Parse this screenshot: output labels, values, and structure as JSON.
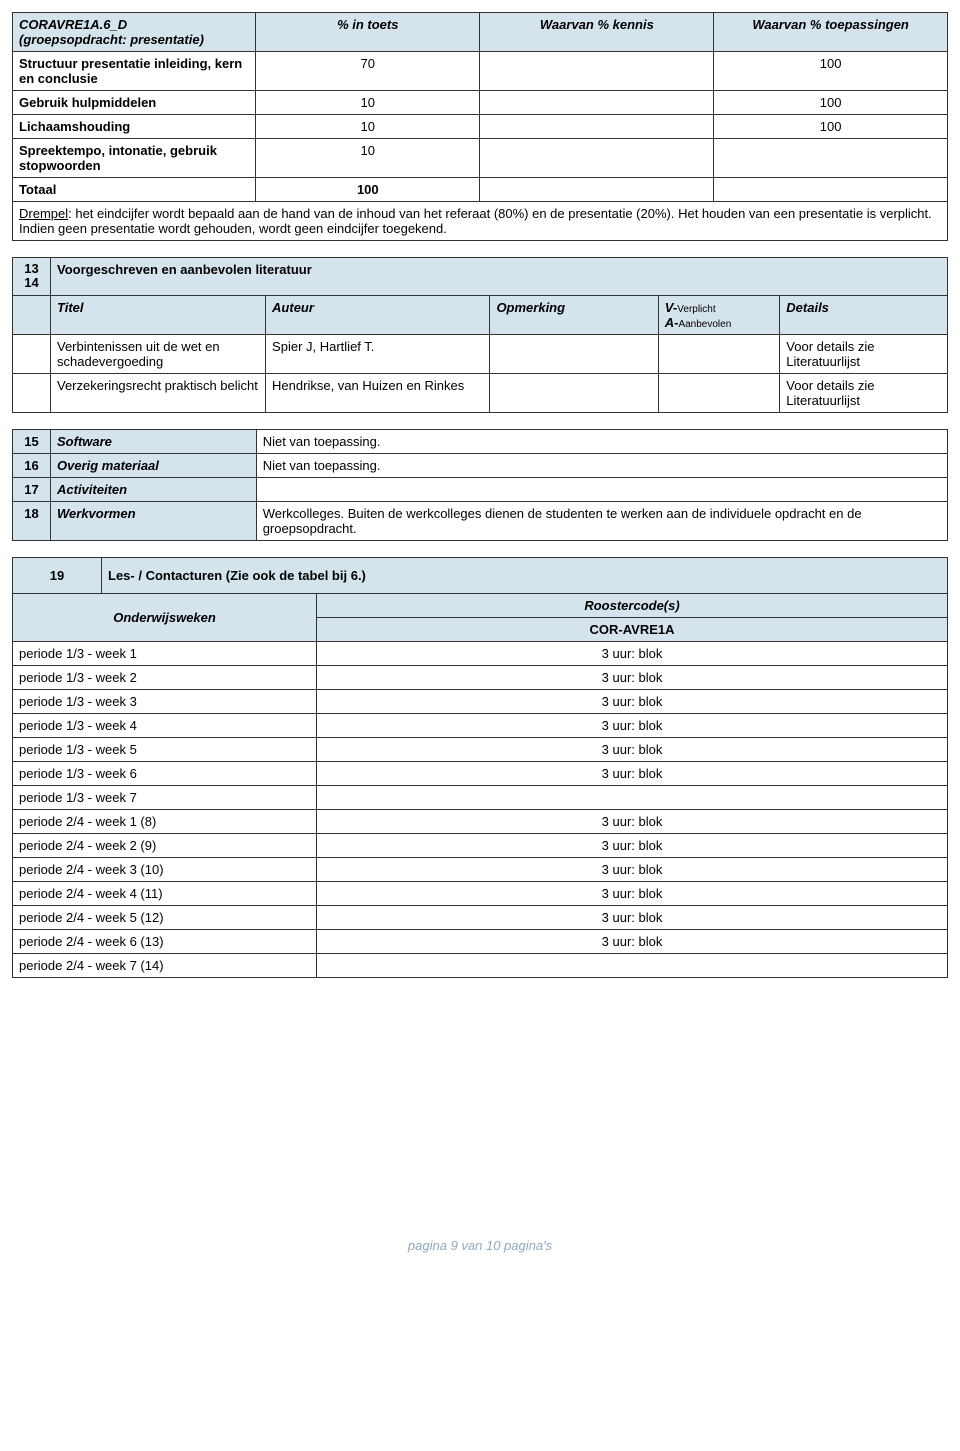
{
  "toets_table": {
    "headers": {
      "col1": "CORAVRE1A.6_D\n(groepsopdracht: presentatie)",
      "col2": "% in toets",
      "col3": "Waarvan % kennis",
      "col4": "Waarvan % toepassingen"
    },
    "rows": [
      {
        "label": "Structuur presentatie inleiding, kern en conclusie",
        "c2": "70",
        "c3": "",
        "c4": "100"
      },
      {
        "label": "Gebruik hulpmiddelen",
        "c2": "10",
        "c3": "",
        "c4": "100"
      },
      {
        "label": "Lichaamshouding",
        "c2": "10",
        "c3": "",
        "c4": "100"
      },
      {
        "label": "Spreektempo, intonatie, gebruik stopwoorden",
        "c2": "10",
        "c3": "",
        "c4": ""
      },
      {
        "label": "Totaal",
        "c2": "100",
        "c3": "",
        "c4": ""
      }
    ],
    "drempel": "Drempel: het eindcijfer wordt bepaald aan de hand van de inhoud van het referaat (80%) en de presentatie (20%). Het houden van een presentatie is verplicht. Indien geen presentatie wordt gehouden, wordt geen eindcijfer toegekend.",
    "drempel_prefix": "Drempel"
  },
  "lit": {
    "num1": "13",
    "num2": "14",
    "title": "Voorgeschreven en aanbevolen literatuur",
    "headers": {
      "titel": "Titel",
      "auteur": "Auteur",
      "opmerking": "Opmerking",
      "va_v": "V-",
      "va_v_sub": "Verplicht",
      "va_a": "A-",
      "va_a_sub": "Aanbevolen",
      "details": "Details"
    },
    "rows": [
      {
        "titel": "Verbintenissen uit de wet en schadevergoeding",
        "auteur": "Spier J, Hartlief T.",
        "opm": "",
        "va": "",
        "details": "Voor details zie Literatuurlijst"
      },
      {
        "titel": "Verzekeringsrecht praktisch belicht",
        "auteur": "Hendrikse, van Huizen en Rinkes",
        "opm": "",
        "va": "",
        "details": "Voor details zie Literatuurlijst"
      }
    ]
  },
  "sections": {
    "s15": {
      "num": "15",
      "label": "Software",
      "value": "Niet van toepassing."
    },
    "s16": {
      "num": "16",
      "label": "Overig materiaal",
      "value": "Niet van toepassing."
    },
    "s17": {
      "num": "17",
      "label": "Activiteiten",
      "value": ""
    },
    "s18": {
      "num": "18",
      "label": "Werkvormen",
      "value": "Werkcolleges. Buiten de werkcolleges dienen de studenten te werken aan de individuele opdracht en de groepsopdracht."
    }
  },
  "contact": {
    "num": "19",
    "title": "Les- / Contacturen (Zie ook de tabel bij 6.)",
    "onderwijsweken_label": "Onderwijsweken",
    "roostercodes_label": "Roostercode(s)",
    "code": "COR-AVRE1A",
    "rows": [
      {
        "week": "periode 1/3 - week 1",
        "val": "3 uur: blok"
      },
      {
        "week": "periode 1/3 - week 2",
        "val": "3 uur: blok"
      },
      {
        "week": "periode 1/3 - week 3",
        "val": "3 uur: blok"
      },
      {
        "week": "periode 1/3 - week 4",
        "val": "3 uur: blok"
      },
      {
        "week": "periode 1/3 - week 5",
        "val": "3 uur: blok"
      },
      {
        "week": "periode 1/3 - week 6",
        "val": "3 uur: blok"
      },
      {
        "week": "periode 1/3 - week 7",
        "val": ""
      },
      {
        "week": "periode 2/4 - week 1 (8)",
        "val": "3 uur: blok"
      },
      {
        "week": "periode 2/4 - week 2 (9)",
        "val": "3 uur: blok"
      },
      {
        "week": "periode 2/4 - week 3 (10)",
        "val": "3 uur: blok"
      },
      {
        "week": "periode 2/4 - week 4 (11)",
        "val": "3 uur: blok"
      },
      {
        "week": "periode 2/4 - week 5 (12)",
        "val": "3 uur: blok"
      },
      {
        "week": "periode 2/4 - week 6 (13)",
        "val": "3 uur: blok"
      },
      {
        "week": "periode 2/4 - week 7 (14)",
        "val": ""
      }
    ]
  },
  "footer": "pagina 9 van 10 pagina's"
}
